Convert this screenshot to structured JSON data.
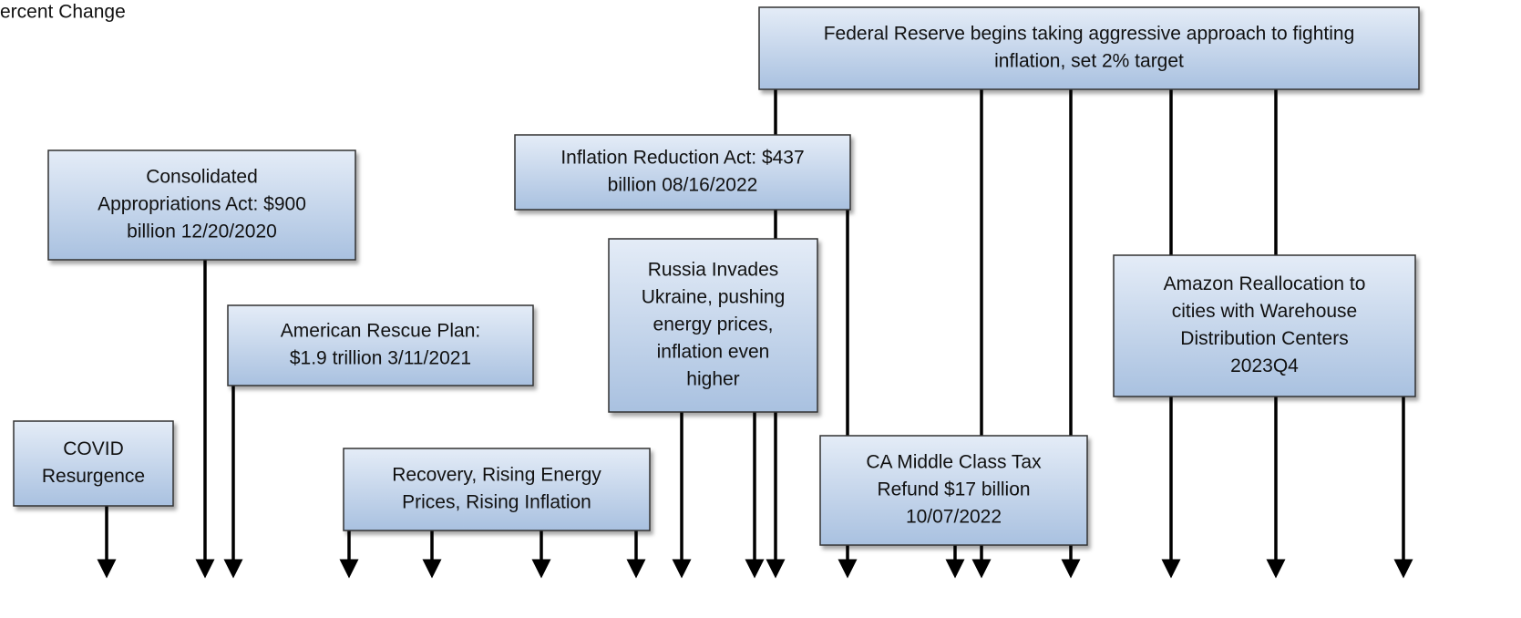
{
  "axis_label": "ercent Change",
  "boxes": [
    {
      "lines": [
        "Federal Reserve begins taking aggressive approach to fighting",
        "inflation, set 2% target"
      ]
    },
    {
      "lines": [
        "Inflation Reduction Act: $437",
        "billion 08/16/2022"
      ]
    },
    {
      "lines": [
        "Consolidated",
        "Appropriations Act: $900",
        "billion 12/20/2020"
      ]
    },
    {
      "lines": [
        "Russia Invades",
        "Ukraine, pushing",
        "energy prices,",
        "inflation even",
        "higher"
      ]
    },
    {
      "lines": [
        "American Rescue Plan:",
        "$1.9 trillion 3/11/2021"
      ]
    },
    {
      "lines": [
        "Amazon Reallocation to",
        "cities with Warehouse",
        "Distribution Centers",
        "2023Q4"
      ]
    },
    {
      "lines": [
        "COVID",
        "Resurgence"
      ]
    },
    {
      "lines": [
        "Recovery, Rising Energy",
        "Prices, Rising Inflation"
      ]
    },
    {
      "lines": [
        "CA Middle Class Tax",
        "Refund $17 billion",
        "10/07/2022"
      ]
    }
  ]
}
